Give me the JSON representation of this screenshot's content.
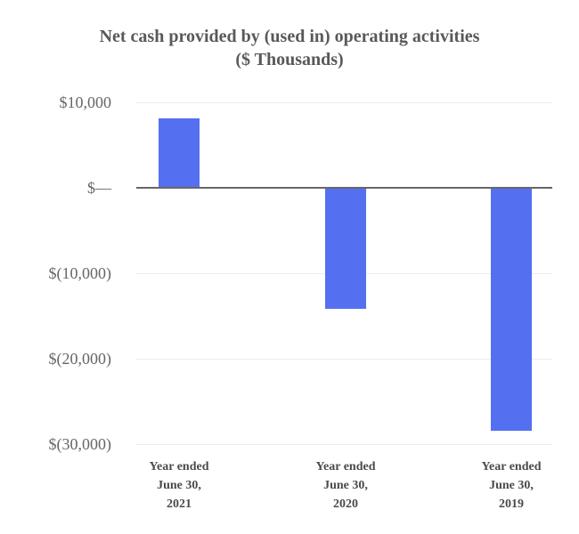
{
  "chart_data": {
    "type": "bar",
    "title": "Net cash provided by (used in) operating activities",
    "subtitle": "($ Thousands)",
    "categories": [
      [
        "Year ended",
        "June 30,",
        "2021"
      ],
      [
        "Year ended",
        "June 30,",
        "2020"
      ],
      [
        "Year ended",
        "June 30,",
        "2019"
      ]
    ],
    "values": [
      8100,
      -14200,
      -28400
    ],
    "xlabel": "",
    "ylabel": "",
    "ylim": [
      -30000,
      10000
    ],
    "yticks": [
      {
        "value": 10000,
        "label": "$10,000"
      },
      {
        "value": 0,
        "label": "$—"
      },
      {
        "value": -10000,
        "label": "$(10,000)"
      },
      {
        "value": -20000,
        "label": "$(20,000)"
      },
      {
        "value": -30000,
        "label": "$(30,000)"
      }
    ],
    "grid": true,
    "legend": false,
    "colors": {
      "bar": "#5470F0",
      "zero_line": "#666666",
      "gridline": "#ececec",
      "title_text": "#595959",
      "axis_tick_text": "#666666",
      "category_text": "#4a4a4a"
    }
  }
}
